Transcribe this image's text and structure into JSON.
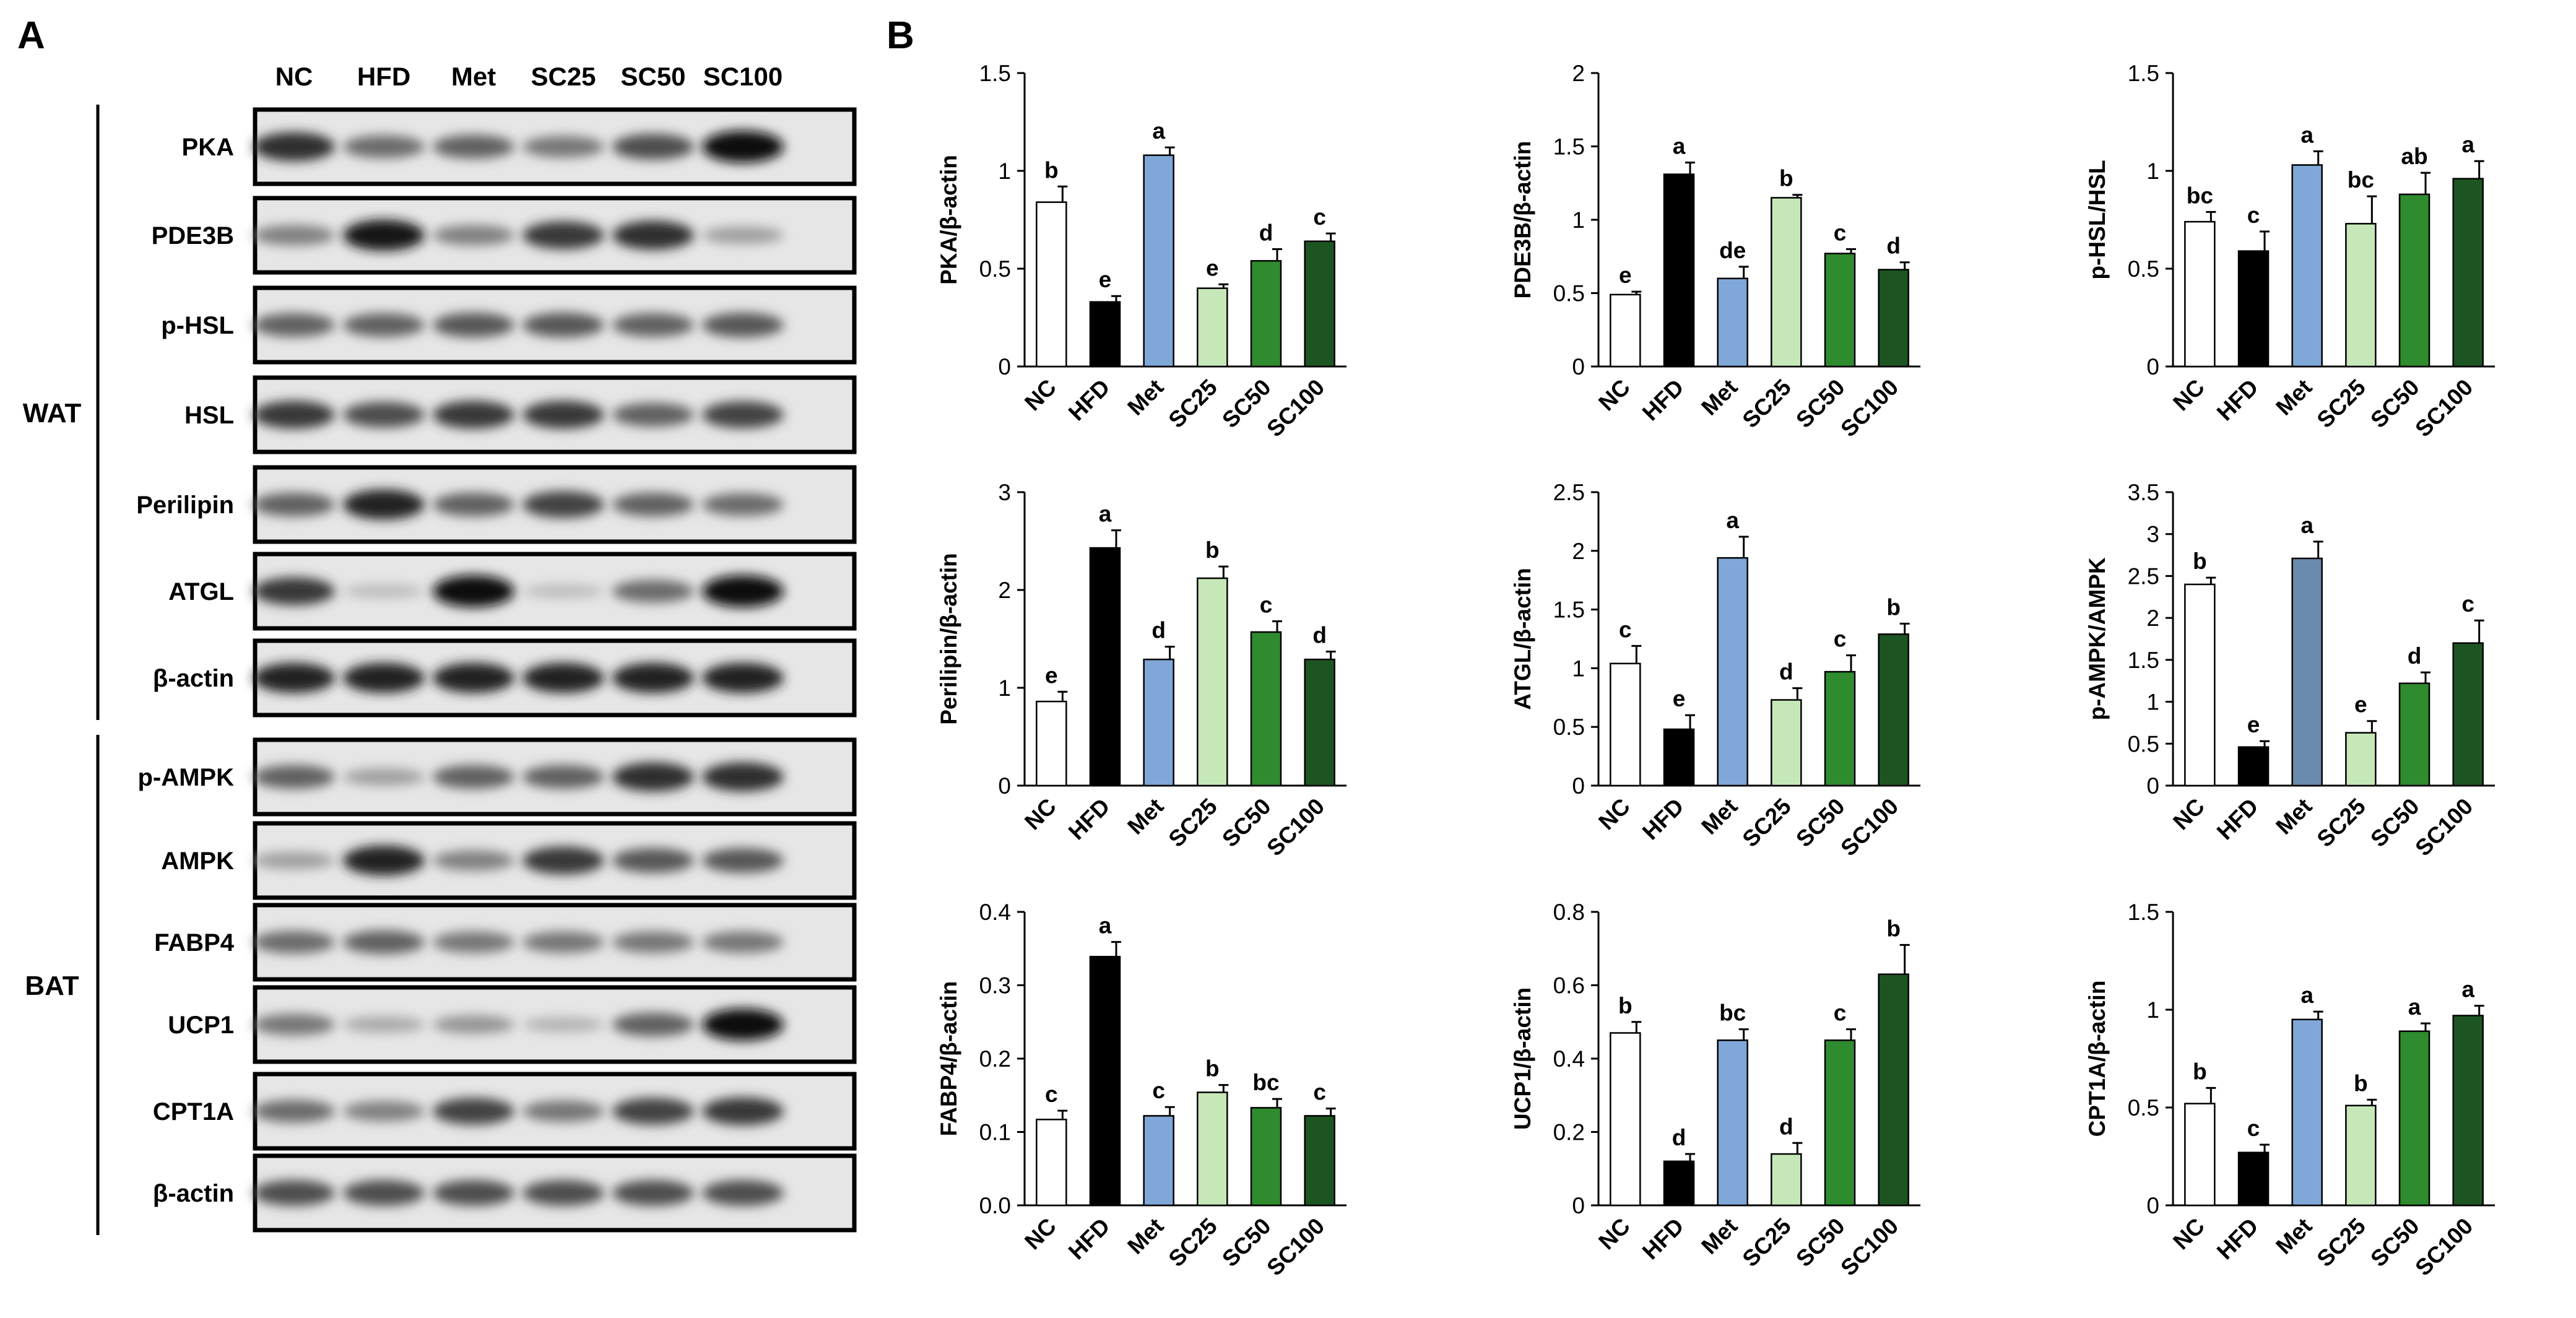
{
  "panel_a": {
    "label": "A",
    "lanes": [
      "NC",
      "HFD",
      "Met",
      "SC25",
      "SC50",
      "SC100"
    ],
    "groups": [
      {
        "name": "WAT",
        "blots": [
          "PKA",
          "PDE3B",
          "p-HSL",
          "HSL",
          "Perilipin",
          "ATGL",
          "β-actin"
        ]
      },
      {
        "name": "BAT",
        "blots": [
          "p-AMPK",
          "AMPK",
          "FABP4",
          "UCP1",
          "CPT1A",
          "β-actin"
        ]
      }
    ],
    "blot_intensity": [
      [
        0.85,
        0.55,
        0.6,
        0.5,
        0.7,
        1.0
      ],
      [
        0.45,
        0.95,
        0.45,
        0.8,
        0.85,
        0.3
      ],
      [
        0.6,
        0.6,
        0.65,
        0.65,
        0.6,
        0.65
      ],
      [
        0.8,
        0.7,
        0.8,
        0.8,
        0.6,
        0.75
      ],
      [
        0.6,
        0.9,
        0.6,
        0.75,
        0.6,
        0.55
      ],
      [
        0.8,
        0.15,
        1.0,
        0.15,
        0.55,
        1.0
      ],
      [
        0.9,
        0.9,
        0.9,
        0.9,
        0.9,
        0.9
      ],
      [
        0.6,
        0.3,
        0.6,
        0.6,
        0.85,
        0.85
      ],
      [
        0.3,
        0.9,
        0.45,
        0.8,
        0.65,
        0.65
      ],
      [
        0.55,
        0.6,
        0.5,
        0.5,
        0.5,
        0.5
      ],
      [
        0.5,
        0.25,
        0.35,
        0.2,
        0.6,
        1.0
      ],
      [
        0.55,
        0.45,
        0.75,
        0.5,
        0.75,
        0.8
      ],
      [
        0.7,
        0.7,
        0.7,
        0.7,
        0.7,
        0.7
      ]
    ]
  },
  "panel_b": {
    "label": "B"
  },
  "colors": {
    "NC": "#ffffff",
    "HFD": "#000000",
    "Met": "#7fa7d8",
    "SC25": "#c6e8b8",
    "SC50": "#2e8b2e",
    "SC100": "#1d5522",
    "Met_pAMPK": "#6a8bad"
  },
  "chart_data": [
    {
      "type": "bar",
      "ylabel": "PKA/β-actin",
      "categories": [
        "NC",
        "HFD",
        "Met",
        "SC25",
        "SC50",
        "SC100"
      ],
      "values": [
        0.84,
        0.33,
        1.08,
        0.4,
        0.54,
        0.64
      ],
      "errors": [
        0.08,
        0.03,
        0.04,
        0.02,
        0.06,
        0.04
      ],
      "letters": [
        "b",
        "e",
        "a",
        "e",
        "d",
        "c"
      ],
      "ylim": [
        0,
        1.5
      ],
      "yticks": [
        "0",
        "0.5",
        "1",
        "1.5"
      ]
    },
    {
      "type": "bar",
      "ylabel": "PDE3B/β-actin",
      "categories": [
        "NC",
        "HFD",
        "Met",
        "SC25",
        "SC50",
        "SC100"
      ],
      "values": [
        0.49,
        1.31,
        0.6,
        1.15,
        0.77,
        0.66
      ],
      "errors": [
        0.02,
        0.08,
        0.08,
        0.02,
        0.03,
        0.05
      ],
      "letters": [
        "e",
        "a",
        "de",
        "b",
        "c",
        "d"
      ],
      "ylim": [
        0,
        2
      ],
      "yticks": [
        "0",
        "0.5",
        "1",
        "1.5",
        "2"
      ]
    },
    {
      "type": "bar",
      "ylabel": "p-HSL/HSL",
      "categories": [
        "NC",
        "HFD",
        "Met",
        "SC25",
        "SC50",
        "SC100"
      ],
      "values": [
        0.74,
        0.59,
        1.03,
        0.73,
        0.88,
        0.96
      ],
      "errors": [
        0.05,
        0.1,
        0.07,
        0.14,
        0.11,
        0.09
      ],
      "letters": [
        "bc",
        "c",
        "a",
        "bc",
        "ab",
        "a"
      ],
      "ylim": [
        0,
        1.5
      ],
      "yticks": [
        "0",
        "0.5",
        "1",
        "1.5"
      ]
    },
    {
      "type": "bar",
      "ylabel": "Perilipin/β-actin",
      "categories": [
        "NC",
        "HFD",
        "Met",
        "SC25",
        "SC50",
        "SC100"
      ],
      "values": [
        0.86,
        2.43,
        1.29,
        2.12,
        1.57,
        1.29
      ],
      "errors": [
        0.1,
        0.18,
        0.13,
        0.12,
        0.11,
        0.08
      ],
      "letters": [
        "e",
        "a",
        "d",
        "b",
        "c",
        "d"
      ],
      "ylim": [
        0,
        3
      ],
      "yticks": [
        "0",
        "1",
        "2",
        "3"
      ]
    },
    {
      "type": "bar",
      "ylabel": "ATGL/β-actin",
      "categories": [
        "NC",
        "HFD",
        "Met",
        "SC25",
        "SC50",
        "SC100"
      ],
      "values": [
        1.04,
        0.48,
        1.94,
        0.73,
        0.97,
        1.29
      ],
      "errors": [
        0.15,
        0.12,
        0.18,
        0.1,
        0.14,
        0.09
      ],
      "letters": [
        "c",
        "e",
        "a",
        "d",
        "c",
        "b"
      ],
      "ylim": [
        0,
        2.5
      ],
      "yticks": [
        "0",
        "0.5",
        "1",
        "1.5",
        "2",
        "2.5"
      ]
    },
    {
      "type": "bar",
      "ylabel": "p-AMPK/AMPK",
      "categories": [
        "NC",
        "HFD",
        "Met",
        "SC25",
        "SC50",
        "SC100"
      ],
      "values": [
        2.4,
        0.46,
        2.71,
        0.63,
        1.22,
        1.7
      ],
      "errors": [
        0.08,
        0.07,
        0.2,
        0.14,
        0.13,
        0.27
      ],
      "letters": [
        "b",
        "e",
        "a",
        "e",
        "d",
        "c"
      ],
      "ylim": [
        0,
        3.5
      ],
      "yticks": [
        "0",
        "0.5",
        "1",
        "1.5",
        "2",
        "2.5",
        "3",
        "3.5"
      ]
    },
    {
      "type": "bar",
      "ylabel": "FABP4/β-actin",
      "categories": [
        "NC",
        "HFD",
        "Met",
        "SC25",
        "SC50",
        "SC100"
      ],
      "values": [
        0.117,
        0.339,
        0.122,
        0.154,
        0.133,
        0.122
      ],
      "errors": [
        0.012,
        0.02,
        0.012,
        0.01,
        0.012,
        0.01
      ],
      "letters": [
        "c",
        "a",
        "c",
        "b",
        "bc",
        "c"
      ],
      "ylim": [
        0,
        0.4
      ],
      "yticks": [
        "0.0",
        "0.1",
        "0.2",
        "0.3",
        "0.4"
      ]
    },
    {
      "type": "bar",
      "ylabel": "UCP1/β-actin",
      "categories": [
        "NC",
        "HFD",
        "Met",
        "SC25",
        "SC50",
        "SC100"
      ],
      "values": [
        0.47,
        0.12,
        0.45,
        0.14,
        0.45,
        0.63
      ],
      "errors": [
        0.03,
        0.02,
        0.03,
        0.03,
        0.03,
        0.08
      ],
      "letters": [
        "b",
        "d",
        "bc",
        "d",
        "c",
        "b"
      ],
      "ylim": [
        0,
        0.8
      ],
      "yticks": [
        "0",
        "0.2",
        "0.4",
        "0.6",
        "0.8"
      ]
    },
    {
      "type": "bar",
      "ylabel": "CPT1A/β-actin",
      "categories": [
        "NC",
        "HFD",
        "Met",
        "SC25",
        "SC50",
        "SC100"
      ],
      "values": [
        0.52,
        0.27,
        0.95,
        0.51,
        0.89,
        0.97
      ],
      "errors": [
        0.08,
        0.04,
        0.04,
        0.03,
        0.04,
        0.05
      ],
      "letters": [
        "b",
        "c",
        "a",
        "b",
        "a",
        "a"
      ],
      "ylim": [
        0,
        1.5
      ],
      "yticks": [
        "0",
        "0.5",
        "1",
        "1.5"
      ]
    }
  ]
}
